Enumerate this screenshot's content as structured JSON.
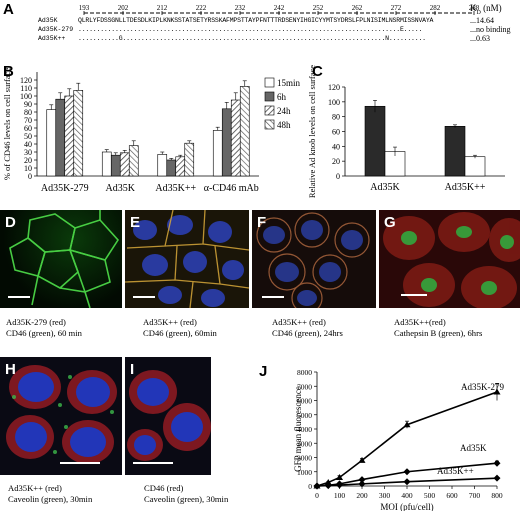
{
  "panels": {
    "A": "A",
    "B": "B",
    "C": "C",
    "D": "D",
    "E": "E",
    "F": "F",
    "G": "G",
    "H": "H",
    "I": "I",
    "J": "J"
  },
  "panelA": {
    "positions": [
      "193",
      "202",
      "212",
      "222",
      "232",
      "242",
      "252",
      "262",
      "272",
      "282",
      "288"
    ],
    "kd_label": "K",
    "kd_sub": "D",
    "kd_unit": " (nM)",
    "rows": [
      {
        "name": "Ad35K",
        "seq": "QLRLYFDSSGNLLTDESDLKIPLKNKSSTATSETYRSSKAFMPSTTAYPFNTTTRDSENYIHGICYYMTSYDRSLFPLNISIMLNSRMISSNVAYA",
        "kd": "...14.64"
      },
      {
        "name": "Ad35K-279",
        "seq": ".......................................................................................E.....",
        "kd": "...no binding"
      },
      {
        "name": "Ad35K++",
        "seq": "...........G.......................................................................N..........",
        "kd": "...0.63"
      }
    ]
  },
  "panelB": {
    "ylabel": "% of CD46 levels on cell surface",
    "yticks": [
      "0",
      "10",
      "20",
      "30",
      "40",
      "50",
      "60",
      "70",
      "80",
      "90",
      "100",
      "110",
      "120"
    ],
    "legend": [
      "15min",
      "6h",
      "24h",
      "48h"
    ]
  },
  "panelC": {
    "ylabel": "Relative Ad knob levels on cell surface",
    "yticks": [
      "0",
      "20",
      "40",
      "60",
      "80",
      "100",
      "120"
    ]
  },
  "panelJ": {
    "ylabel": "GFP mean fluorescence",
    "xlabel": "MOI (pfu/cell)",
    "yticks": [
      "0",
      "1000",
      "2000",
      "3000",
      "4000",
      "5000",
      "6000",
      "7000",
      "8000"
    ],
    "xticks": [
      "0",
      "100",
      "200",
      "300",
      "400",
      "500",
      "600",
      "700",
      "800"
    ]
  },
  "captions": {
    "D": [
      "Ad35K-279 (red)",
      "CD46 (green), 60 min"
    ],
    "E": [
      "Ad35K++ (red)",
      "CD46 (green), 60min"
    ],
    "F": [
      "Ad35K++ (red)",
      "CD46 (green), 24hrs"
    ],
    "G": [
      "Ad35K++(red)",
      "Cathepsin B (green), 6hrs"
    ],
    "H": [
      "Ad35K++ (red)",
      "Caveolin (green), 30min"
    ],
    "I": [
      "CD46  (red)",
      "Caveolin (green), 30min"
    ]
  },
  "chart_data": [
    {
      "type": "bar",
      "panel": "B",
      "categories": [
        "Ad35K-279",
        "Ad35K",
        "Ad35K++",
        "α-CD46 mAb"
      ],
      "series": [
        {
          "name": "15min",
          "values": [
            83,
            30,
            27,
            57
          ],
          "errors": [
            6,
            3,
            3,
            4
          ]
        },
        {
          "name": "6h",
          "values": [
            96,
            26,
            20,
            84
          ],
          "errors": [
            8,
            3,
            2,
            8
          ]
        },
        {
          "name": "24h",
          "values": [
            100,
            29,
            24,
            95
          ],
          "errors": [
            9,
            3,
            2,
            9
          ]
        },
        {
          "name": "48h",
          "values": [
            107,
            38,
            41,
            112
          ],
          "errors": [
            9,
            6,
            3,
            7
          ]
        }
      ],
      "ylabel": "% of CD46 levels on cell surface",
      "ylim": [
        0,
        130
      ]
    },
    {
      "type": "bar",
      "panel": "C",
      "categories": [
        "Ad35K",
        "Ad35K++"
      ],
      "series": [
        {
          "values": [
            94,
            67
          ],
          "errors": [
            8,
            2
          ]
        },
        {
          "values": [
            33,
            26
          ],
          "errors": [
            6,
            2
          ]
        }
      ],
      "ylabel": "Relative Ad knob levels on cell surface",
      "ylim": [
        0,
        120
      ]
    },
    {
      "type": "line",
      "panel": "J",
      "x": [
        0,
        50,
        100,
        200,
        400,
        800
      ],
      "series": [
        {
          "name": "Ad35K-279",
          "values": [
            0,
            250,
            600,
            1800,
            4300,
            6600
          ],
          "errors": [
            0,
            60,
            120,
            120,
            250,
            600
          ]
        },
        {
          "name": "Ad35K",
          "values": [
            0,
            50,
            150,
            450,
            1000,
            1600
          ],
          "errors": [
            0,
            20,
            40,
            60,
            100,
            150
          ]
        },
        {
          "name": "Ad35K++",
          "values": [
            0,
            30,
            70,
            150,
            300,
            550
          ],
          "errors": [
            0,
            10,
            20,
            30,
            40,
            60
          ]
        }
      ],
      "xlabel": "MOI (pfu/cell)",
      "ylabel": "GFP mean fluorescence",
      "xlim": [
        0,
        800
      ],
      "ylim": [
        0,
        8000
      ]
    }
  ]
}
